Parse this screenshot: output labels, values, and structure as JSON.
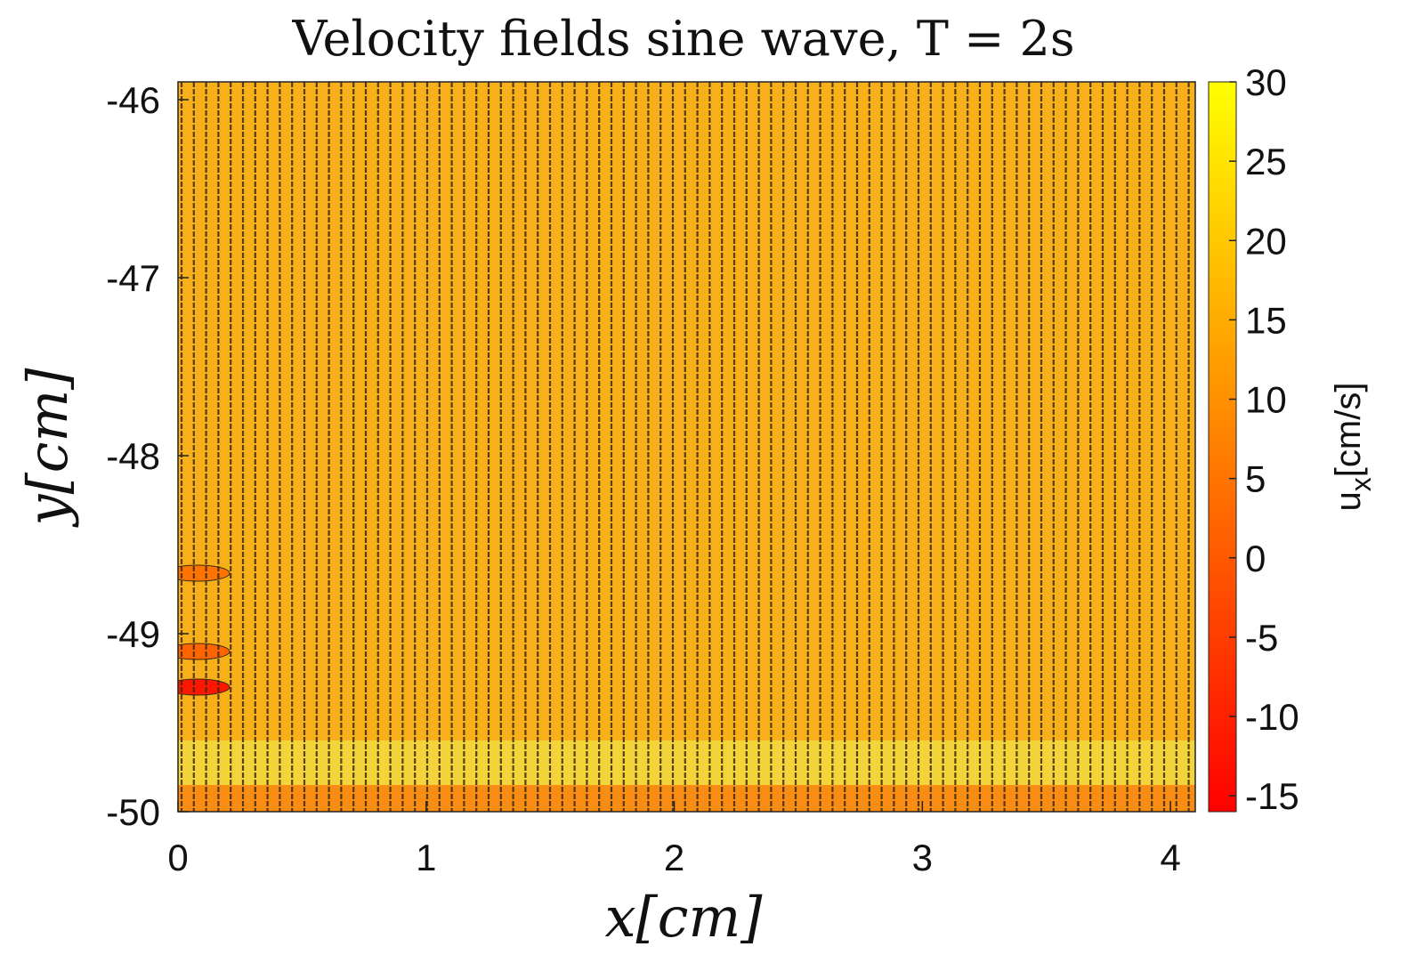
{
  "chart_data": {
    "type": "heatmap",
    "title": "Velocity fields sine wave, T = 2s",
    "xlabel": "x[cm]",
    "ylabel": "y[cm]",
    "xlim": [
      0,
      4.1
    ],
    "ylim": [
      -50,
      -45.9
    ],
    "xticks": [
      0,
      1,
      2,
      3,
      4
    ],
    "yticks": [
      -46,
      -47,
      -48,
      -49,
      -50
    ],
    "colorbar": {
      "label": "u_x[cm/s]",
      "label_main": "u",
      "label_sub": "x",
      "label_rest": "[cm/s]",
      "range": [
        -16,
        30
      ],
      "ticks": [
        30,
        25,
        20,
        15,
        10,
        5,
        0,
        -5,
        -10,
        -15
      ],
      "colormap": "autumn",
      "color_low": "#ff0000",
      "color_high": "#ffff00"
    },
    "field": {
      "main_velocity_cm_s": 20,
      "main_color": "#f7b019",
      "stripe_color": "#3a2a10",
      "near_wall_band": {
        "y_range": [
          -49.95,
          -49.6
        ],
        "velocity_cm_s": 26,
        "color": "#f3d43a"
      },
      "wall_band": {
        "y_range": [
          -50,
          -49.85
        ],
        "velocity_cm_s": 12,
        "color": "#f98c12"
      },
      "low_velocity_spots": [
        {
          "x": 0.05,
          "y": -48.66,
          "velocity_cm_s": 5
        },
        {
          "x": 0.05,
          "y": -49.1,
          "velocity_cm_s": 2
        },
        {
          "x": 0.05,
          "y": -49.3,
          "velocity_cm_s": -12
        }
      ]
    },
    "grid": false,
    "legend": "none"
  }
}
